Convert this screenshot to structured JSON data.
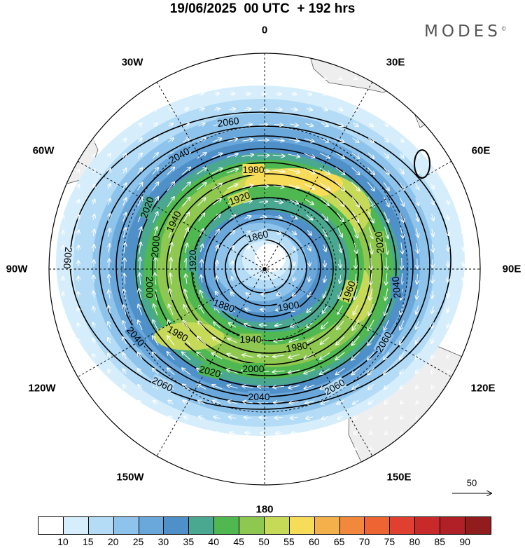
{
  "title": "19/06/2025  00 UTC  + 192 hrs",
  "brand": "MODES",
  "brand_mark": "©",
  "longitude_labels": {
    "n0": "0",
    "e30": "30E",
    "e60": "60E",
    "e90": "90E",
    "e120": "120E",
    "e150": "150E",
    "s180": "180",
    "w150": "150W",
    "w120": "120W",
    "w90": "90W",
    "w60": "60W",
    "w30": "30W"
  },
  "contour_labels": {
    "c1860": "1860",
    "c1900": "1900",
    "c1920a": "1920",
    "c1920b": "1920",
    "c1940a": "1940",
    "c1940b": "1940",
    "c1960": "1960",
    "c1980a": "1980",
    "c1980b": "1980",
    "c1980c": "1980",
    "c2000a": "2000",
    "c2000b": "2000",
    "c2000c": "2000",
    "c2020a": "2020",
    "c2020b": "2020",
    "c2020c": "2020",
    "c2040a": "2040",
    "c2040b": "2040",
    "c2040c": "2040",
    "c2040d": "2040",
    "c2060a": "2060",
    "c2060b": "2060",
    "c2060c": "2060",
    "c2060d": "2060",
    "c1880": "1880"
  },
  "vector_reference": "50",
  "colorbar": {
    "colors": [
      "#ffffff",
      "#d6eefc",
      "#b4dcf6",
      "#8ec4ec",
      "#6aa8dc",
      "#4f90c8",
      "#4aa890",
      "#50b850",
      "#8ec850",
      "#c6da58",
      "#f6dc58",
      "#f4b04a",
      "#f2883c",
      "#ee6432",
      "#e04030",
      "#c82a2a",
      "#b02026",
      "#901c1e"
    ],
    "ticks": [
      "10",
      "15",
      "20",
      "25",
      "30",
      "35",
      "40",
      "45",
      "50",
      "55",
      "60",
      "65",
      "70",
      "75",
      "80",
      "85",
      "90"
    ]
  },
  "field": {
    "shading": "wind speed",
    "contours": "geopotential height",
    "projection": "polar stereographic, South Pole centered"
  }
}
